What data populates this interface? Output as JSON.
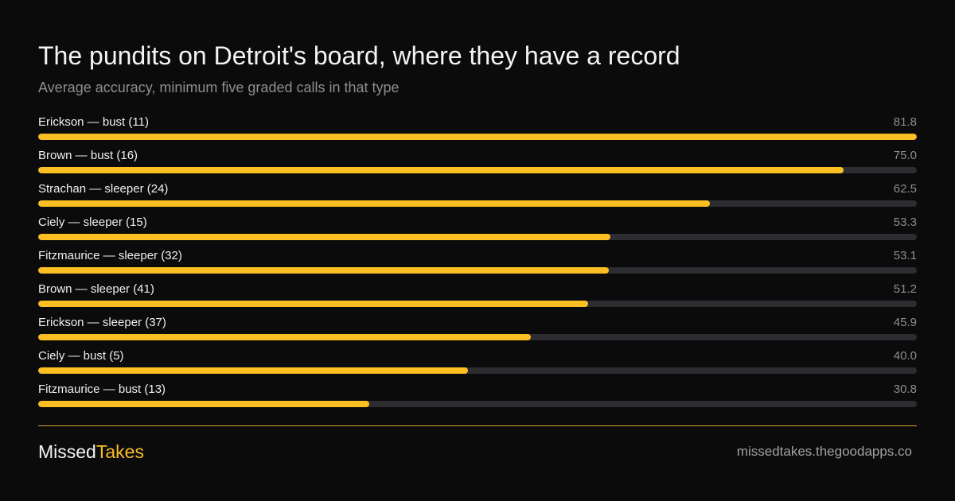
{
  "header": {
    "title": "The pundits on Detroit's board, where they have a record",
    "subtitle": "Average accuracy, minimum five graded calls in that type"
  },
  "chart_data": {
    "type": "bar",
    "orientation": "horizontal",
    "title": "The pundits on Detroit's board, where they have a record",
    "subtitle": "Average accuracy, minimum five graded calls in that type",
    "categories": [
      "Erickson — bust (11)",
      "Brown — bust (16)",
      "Strachan — sleeper (24)",
      "Ciely — sleeper (15)",
      "Fitzmaurice — sleeper (32)",
      "Brown — sleeper (41)",
      "Erickson — sleeper (37)",
      "Ciely — bust (5)",
      "Fitzmaurice — bust (13)"
    ],
    "values": [
      81.8,
      75.0,
      62.5,
      53.3,
      53.1,
      51.2,
      45.9,
      40.0,
      30.8
    ],
    "value_labels": [
      "81.8",
      "75.0",
      "62.5",
      "53.3",
      "53.1",
      "51.2",
      "45.9",
      "40.0",
      "30.8"
    ],
    "xlim": [
      0,
      81.8
    ],
    "grid": false,
    "bar_color": "#fbbf24",
    "track_color": "#2c2c31"
  },
  "footer": {
    "brand_part1": "Missed",
    "brand_part2": "Takes",
    "site": "missedtakes.thegoodapps.co"
  },
  "colors": {
    "background": "#0b0b0b",
    "accent": "#fbbf24",
    "muted_text": "#8e8e93"
  }
}
